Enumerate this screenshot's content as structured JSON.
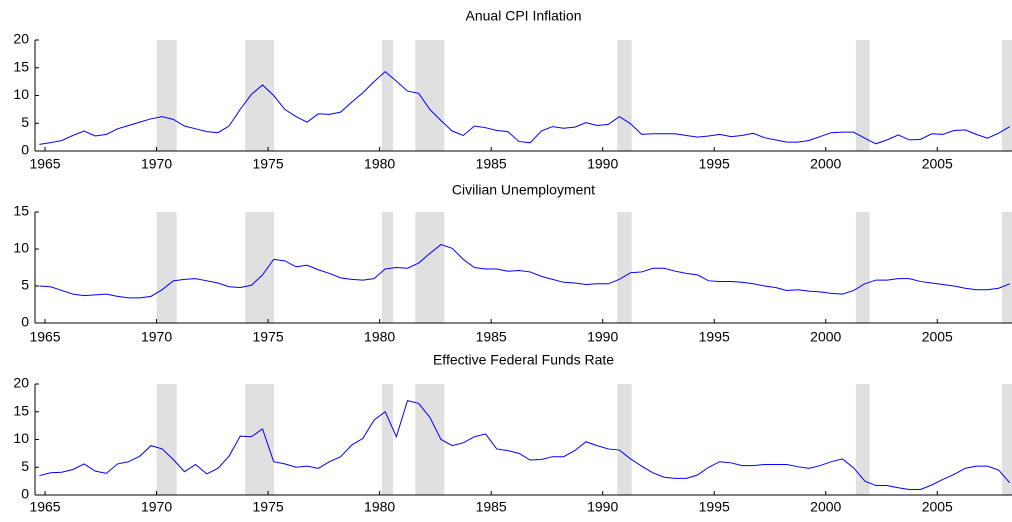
{
  "chart_data": [
    {
      "type": "line",
      "title": "Anual CPI Inflation",
      "color": "#0000ff",
      "shade_color": "#e0e0e0",
      "shaded_x_ranges": [
        [
          1970.0,
          1970.9
        ],
        [
          1973.97,
          1975.27
        ],
        [
          1980.1,
          1980.6
        ],
        [
          1981.6,
          1982.9
        ],
        [
          1990.65,
          1991.3
        ],
        [
          2001.35,
          2001.97
        ],
        [
          2007.9,
          2008.4
        ]
      ],
      "x": [
        1964.75,
        1965.25,
        1965.75,
        1966.25,
        1966.75,
        1967.25,
        1967.75,
        1968.25,
        1968.75,
        1969.25,
        1969.75,
        1970.25,
        1970.75,
        1971.25,
        1971.75,
        1972.25,
        1972.75,
        1973.25,
        1973.75,
        1974.25,
        1974.75,
        1975.25,
        1975.75,
        1976.25,
        1976.75,
        1977.25,
        1977.75,
        1978.25,
        1978.75,
        1979.25,
        1979.75,
        1980.25,
        1980.75,
        1981.25,
        1981.75,
        1982.25,
        1982.75,
        1983.25,
        1983.75,
        1984.25,
        1984.75,
        1985.25,
        1985.75,
        1986.25,
        1986.75,
        1987.25,
        1987.75,
        1988.25,
        1988.75,
        1989.25,
        1989.75,
        1990.25,
        1990.75,
        1991.25,
        1991.75,
        1992.25,
        1992.75,
        1993.25,
        1993.75,
        1994.25,
        1994.75,
        1995.25,
        1995.75,
        1996.25,
        1996.75,
        1997.25,
        1997.75,
        1998.25,
        1998.75,
        1999.25,
        1999.75,
        2000.25,
        2000.75,
        2001.25,
        2001.75,
        2002.25,
        2002.75,
        2003.25,
        2003.75,
        2004.25,
        2004.75,
        2005.25,
        2005.75,
        2006.25,
        2006.75,
        2007.25,
        2007.75,
        2008.25
      ],
      "values": [
        1.2,
        1.5,
        1.9,
        2.8,
        3.6,
        2.7,
        3.0,
        4.0,
        4.6,
        5.2,
        5.8,
        6.2,
        5.7,
        4.5,
        4.0,
        3.5,
        3.3,
        4.5,
        7.5,
        10.2,
        11.9,
        10.0,
        7.5,
        6.2,
        5.2,
        6.7,
        6.6,
        7.0,
        8.8,
        10.5,
        12.5,
        14.3,
        12.6,
        10.8,
        10.4,
        7.5,
        5.5,
        3.6,
        2.8,
        4.5,
        4.2,
        3.7,
        3.5,
        1.7,
        1.5,
        3.6,
        4.4,
        4.1,
        4.3,
        5.1,
        4.6,
        4.8,
        6.2,
        4.9,
        3.0,
        3.1,
        3.1,
        3.1,
        2.8,
        2.5,
        2.7,
        3.0,
        2.6,
        2.8,
        3.2,
        2.4,
        2.0,
        1.6,
        1.6,
        1.9,
        2.6,
        3.3,
        3.4,
        3.4,
        2.3,
        1.3,
        2.0,
        2.9,
        2.0,
        2.1,
        3.1,
        3.0,
        3.7,
        3.8,
        3.0,
        2.3,
        3.2,
        4.4
      ],
      "xlim": [
        1964.55,
        2008.35
      ],
      "xticks": [
        1965,
        1970,
        1975,
        1980,
        1985,
        1990,
        1995,
        2000,
        2005
      ],
      "ylim": [
        0,
        20
      ],
      "yticks": [
        0,
        5,
        10,
        15,
        20
      ]
    },
    {
      "type": "line",
      "title": "Civilian Unemployment",
      "color": "#0000ff",
      "shade_color": "#e0e0e0",
      "shaded_x_ranges": [
        [
          1970.0,
          1970.9
        ],
        [
          1973.97,
          1975.27
        ],
        [
          1980.1,
          1980.6
        ],
        [
          1981.6,
          1982.9
        ],
        [
          1990.65,
          1991.3
        ],
        [
          2001.35,
          2001.97
        ],
        [
          2007.9,
          2008.4
        ]
      ],
      "x": [
        1964.75,
        1965.25,
        1965.75,
        1966.25,
        1966.75,
        1967.25,
        1967.75,
        1968.25,
        1968.75,
        1969.25,
        1969.75,
        1970.25,
        1970.75,
        1971.25,
        1971.75,
        1972.25,
        1972.75,
        1973.25,
        1973.75,
        1974.25,
        1974.75,
        1975.25,
        1975.75,
        1976.25,
        1976.75,
        1977.25,
        1977.75,
        1978.25,
        1978.75,
        1979.25,
        1979.75,
        1980.25,
        1980.75,
        1981.25,
        1981.75,
        1982.25,
        1982.75,
        1983.25,
        1983.75,
        1984.25,
        1984.75,
        1985.25,
        1985.75,
        1986.25,
        1986.75,
        1987.25,
        1987.75,
        1988.25,
        1988.75,
        1989.25,
        1989.75,
        1990.25,
        1990.75,
        1991.25,
        1991.75,
        1992.25,
        1992.75,
        1993.25,
        1993.75,
        1994.25,
        1994.75,
        1995.25,
        1995.75,
        1996.25,
        1996.75,
        1997.25,
        1997.75,
        1998.25,
        1998.75,
        1999.25,
        1999.75,
        2000.25,
        2000.75,
        2001.25,
        2001.75,
        2002.25,
        2002.75,
        2003.25,
        2003.75,
        2004.25,
        2004.75,
        2005.25,
        2005.75,
        2006.25,
        2006.75,
        2007.25,
        2007.75,
        2008.25
      ],
      "values": [
        5.0,
        4.9,
        4.4,
        3.9,
        3.7,
        3.8,
        3.9,
        3.6,
        3.4,
        3.4,
        3.6,
        4.5,
        5.7,
        5.9,
        6.0,
        5.7,
        5.4,
        4.9,
        4.8,
        5.1,
        6.5,
        8.6,
        8.4,
        7.6,
        7.8,
        7.2,
        6.7,
        6.1,
        5.9,
        5.8,
        6.0,
        7.3,
        7.5,
        7.4,
        8.1,
        9.4,
        10.6,
        10.1,
        8.6,
        7.5,
        7.3,
        7.3,
        7.0,
        7.1,
        6.9,
        6.3,
        5.9,
        5.5,
        5.4,
        5.2,
        5.3,
        5.3,
        5.9,
        6.8,
        6.9,
        7.4,
        7.4,
        7.0,
        6.7,
        6.5,
        5.7,
        5.6,
        5.6,
        5.5,
        5.3,
        5.0,
        4.8,
        4.4,
        4.5,
        4.3,
        4.2,
        4.0,
        3.9,
        4.4,
        5.3,
        5.8,
        5.8,
        6.0,
        6.0,
        5.6,
        5.4,
        5.2,
        5.0,
        4.7,
        4.5,
        4.5,
        4.7,
        5.3
      ],
      "xlim": [
        1964.55,
        2008.35
      ],
      "xticks": [
        1965,
        1970,
        1975,
        1980,
        1985,
        1990,
        1995,
        2000,
        2005
      ],
      "ylim": [
        0,
        15
      ],
      "yticks": [
        0,
        5,
        10,
        15
      ]
    },
    {
      "type": "line",
      "title": "Effective Federal Funds Rate",
      "color": "#0000ff",
      "shade_color": "#e0e0e0",
      "shaded_x_ranges": [
        [
          1970.0,
          1970.9
        ],
        [
          1973.97,
          1975.27
        ],
        [
          1980.1,
          1980.6
        ],
        [
          1981.6,
          1982.9
        ],
        [
          1990.65,
          1991.3
        ],
        [
          2001.35,
          2001.97
        ],
        [
          2007.9,
          2008.4
        ]
      ],
      "x": [
        1964.75,
        1965.25,
        1965.75,
        1966.25,
        1966.75,
        1967.25,
        1967.75,
        1968.25,
        1968.75,
        1969.25,
        1969.75,
        1970.25,
        1970.75,
        1971.25,
        1971.75,
        1972.25,
        1972.75,
        1973.25,
        1973.75,
        1974.25,
        1974.75,
        1975.25,
        1975.75,
        1976.25,
        1976.75,
        1977.25,
        1977.75,
        1978.25,
        1978.75,
        1979.25,
        1979.75,
        1980.25,
        1980.75,
        1981.25,
        1981.75,
        1982.25,
        1982.75,
        1983.25,
        1983.75,
        1984.25,
        1984.75,
        1985.25,
        1985.75,
        1986.25,
        1986.75,
        1987.25,
        1987.75,
        1988.25,
        1988.75,
        1989.25,
        1989.75,
        1990.25,
        1990.75,
        1991.25,
        1991.75,
        1992.25,
        1992.75,
        1993.25,
        1993.75,
        1994.25,
        1994.75,
        1995.25,
        1995.75,
        1996.25,
        1996.75,
        1997.25,
        1997.75,
        1998.25,
        1998.75,
        1999.25,
        1999.75,
        2000.25,
        2000.75,
        2001.25,
        2001.75,
        2002.25,
        2002.75,
        2003.25,
        2003.75,
        2004.25,
        2004.75,
        2005.25,
        2005.75,
        2006.25,
        2006.75,
        2007.25,
        2007.75,
        2008.25
      ],
      "values": [
        3.5,
        4.0,
        4.1,
        4.6,
        5.6,
        4.3,
        3.9,
        5.6,
        6.0,
        7.0,
        8.9,
        8.3,
        6.4,
        4.2,
        5.5,
        3.8,
        4.8,
        7.0,
        10.6,
        10.5,
        11.9,
        6.0,
        5.6,
        5.0,
        5.2,
        4.8,
        6.0,
        6.9,
        9.0,
        10.2,
        13.5,
        15.0,
        10.5,
        17.0,
        16.5,
        14.0,
        10.0,
        8.9,
        9.4,
        10.5,
        11.0,
        8.3,
        8.0,
        7.5,
        6.3,
        6.4,
        6.9,
        6.9,
        8.0,
        9.6,
        8.9,
        8.3,
        8.1,
        6.5,
        5.2,
        4.0,
        3.2,
        3.0,
        3.0,
        3.6,
        5.0,
        6.0,
        5.8,
        5.3,
        5.3,
        5.5,
        5.5,
        5.5,
        5.1,
        4.8,
        5.3,
        6.0,
        6.5,
        4.9,
        2.5,
        1.7,
        1.7,
        1.3,
        1.0,
        1.0,
        1.8,
        2.8,
        3.7,
        4.8,
        5.2,
        5.2,
        4.5,
        2.2
      ],
      "xlim": [
        1964.55,
        2008.35
      ],
      "xticks": [
        1965,
        1970,
        1975,
        1980,
        1985,
        1990,
        1995,
        2000,
        2005
      ],
      "ylim": [
        0,
        20
      ],
      "yticks": [
        0,
        5,
        10,
        15,
        20
      ]
    }
  ]
}
